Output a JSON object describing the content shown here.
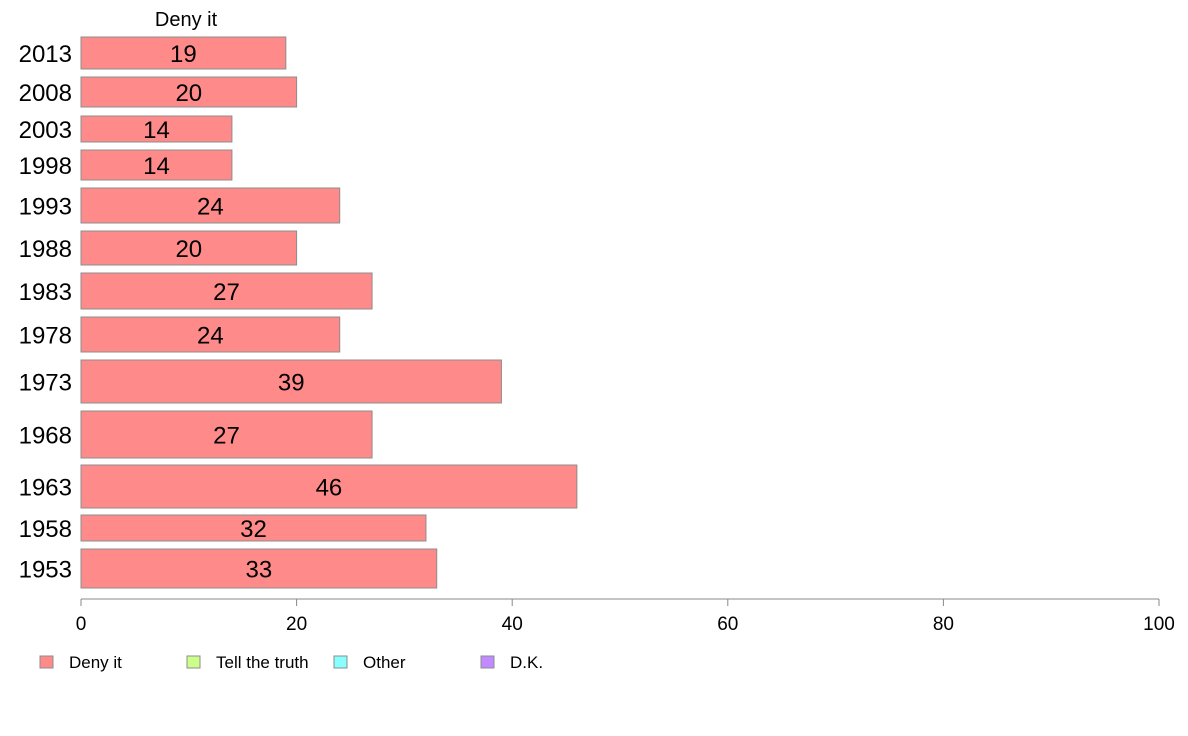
{
  "chart_data": {
    "type": "bar",
    "orientation": "horizontal",
    "header": "Deny it",
    "categories": [
      "2013",
      "2008",
      "2003",
      "1998",
      "1993",
      "1988",
      "1983",
      "1978",
      "1973",
      "1968",
      "1963",
      "1958",
      "1953"
    ],
    "series": [
      {
        "name": "Deny it",
        "color": "#ff8a8a",
        "values": [
          19,
          20,
          14,
          14,
          24,
          20,
          27,
          24,
          39,
          27,
          46,
          32,
          33
        ],
        "data_labels": [
          "19",
          "20",
          "14",
          "14",
          "24",
          "20",
          "27",
          "24",
          "39",
          "27",
          "46",
          "32",
          "33"
        ]
      }
    ],
    "xlim": [
      0,
      100
    ],
    "xticks": [
      0,
      20,
      40,
      60,
      80,
      100
    ],
    "xtick_labels": [
      "0",
      "20",
      "40",
      "60",
      "80",
      "100"
    ],
    "grid": false,
    "legend": {
      "placement": "bottom",
      "items": [
        {
          "label": "Deny it",
          "color": "#ff8a8a"
        },
        {
          "label": "Tell the truth",
          "color": "#ccff8a"
        },
        {
          "label": "Other",
          "color": "#8affff"
        },
        {
          "label": "D.K.",
          "color": "#c28aff"
        }
      ]
    }
  }
}
